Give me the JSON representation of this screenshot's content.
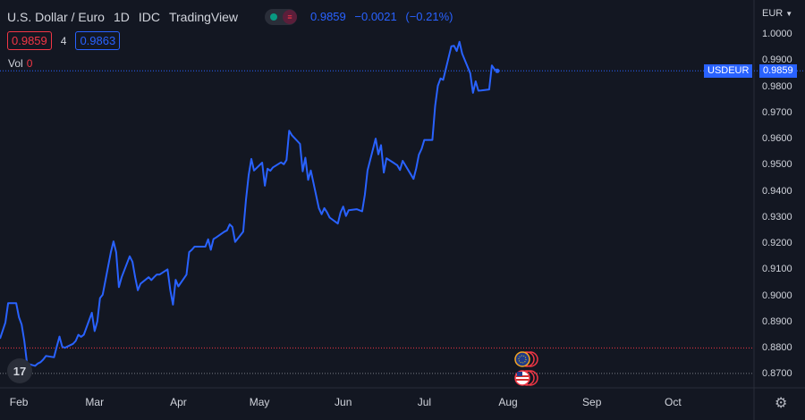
{
  "header": {
    "symbol": "U.S. Dollar / Euro",
    "interval": "1D",
    "exchange": "IDC",
    "provider": "TradingView"
  },
  "quote": {
    "last": "0.9859",
    "change": "−0.0021",
    "change_pct": "(−0.21%)"
  },
  "bid_ask": {
    "bid": "0.9859",
    "spread": "4",
    "ask": "0.9863"
  },
  "volume": {
    "label": "Vol",
    "value": "0"
  },
  "currency": {
    "label": "EUR",
    "icon": "chevron-down-icon"
  },
  "price_tag": {
    "name": "USDEUR",
    "value": "0.9859"
  },
  "icons": {
    "logo": "tradingview-logo",
    "settings": "gear-icon",
    "events": [
      "eu-flag-icon",
      "us-flag-icon"
    ]
  },
  "colors": {
    "line": "#2962ff",
    "background": "#131722",
    "bid": "#f23645",
    "ask": "#2962ff",
    "market_open": "#089981"
  },
  "chart_data": {
    "type": "line",
    "symbol": "USDEUR",
    "y_ticks": [
      "1.0000",
      "0.9900",
      "0.9800",
      "0.9700",
      "0.9600",
      "0.9500",
      "0.9400",
      "0.9300",
      "0.9200",
      "0.9100",
      "0.9000",
      "0.8900",
      "0.8800",
      "0.8700"
    ],
    "x_ticks": [
      "Feb",
      "Mar",
      "Apr",
      "May",
      "Jun",
      "Jul",
      "Aug",
      "Sep",
      "Oct"
    ],
    "ylim": [
      0.8647,
      1.013
    ],
    "xlim": [
      "2022-01-25",
      "2022-10-31"
    ],
    "grid": false,
    "reference_lines": [
      0.98591,
      0.87994,
      0.8702
    ],
    "series": [
      {
        "values": [
          [
            "2022-01-25",
            0.8835
          ],
          [
            "2022-01-27",
            0.8896
          ],
          [
            "2022-01-28",
            0.8971
          ],
          [
            "2022-01-31",
            0.8971
          ],
          [
            "2022-02-01",
            0.8917
          ],
          [
            "2022-02-02",
            0.8889
          ],
          [
            "2022-02-03",
            0.8826
          ],
          [
            "2022-02-04",
            0.874
          ],
          [
            "2022-02-07",
            0.8731
          ],
          [
            "2022-02-08",
            0.874
          ],
          [
            "2022-02-09",
            0.8745
          ],
          [
            "2022-02-10",
            0.8755
          ],
          [
            "2022-02-11",
            0.8769
          ],
          [
            "2022-02-14",
            0.8764
          ],
          [
            "2022-02-15",
            0.8805
          ],
          [
            "2022-02-16",
            0.8843
          ],
          [
            "2022-02-17",
            0.8805
          ],
          [
            "2022-02-18",
            0.88
          ],
          [
            "2022-02-21",
            0.8815
          ],
          [
            "2022-02-22",
            0.8826
          ],
          [
            "2022-02-23",
            0.885
          ],
          [
            "2022-02-24",
            0.8842
          ],
          [
            "2022-02-25",
            0.885
          ],
          [
            "2022-02-28",
            0.8934
          ],
          [
            "2022-03-01",
            0.8864
          ],
          [
            "2022-03-02",
            0.8901
          ],
          [
            "2022-03-03",
            0.899
          ],
          [
            "2022-03-04",
            0.9003
          ],
          [
            "2022-03-07",
            0.9165
          ],
          [
            "2022-03-08",
            0.9207
          ],
          [
            "2022-03-09",
            0.9165
          ],
          [
            "2022-03-10",
            0.9032
          ],
          [
            "2022-03-11",
            0.907
          ],
          [
            "2022-03-14",
            0.915
          ],
          [
            "2022-03-15",
            0.9129
          ],
          [
            "2022-03-16",
            0.907
          ],
          [
            "2022-03-17",
            0.902
          ],
          [
            "2022-03-18",
            0.9045
          ],
          [
            "2022-03-21",
            0.907
          ],
          [
            "2022-03-22",
            0.9059
          ],
          [
            "2022-03-23",
            0.907
          ],
          [
            "2022-03-24",
            0.908
          ],
          [
            "2022-03-25",
            0.908
          ],
          [
            "2022-03-28",
            0.91
          ],
          [
            "2022-03-29",
            0.902
          ],
          [
            "2022-03-30",
            0.8965
          ],
          [
            "2022-03-31",
            0.906
          ],
          [
            "2022-04-01",
            0.9035
          ],
          [
            "2022-04-04",
            0.908
          ],
          [
            "2022-04-05",
            0.9166
          ],
          [
            "2022-04-06",
            0.9175
          ],
          [
            "2022-04-07",
            0.9187
          ],
          [
            "2022-04-08",
            0.9187
          ],
          [
            "2022-04-11",
            0.9187
          ],
          [
            "2022-04-12",
            0.9215
          ],
          [
            "2022-04-13",
            0.9175
          ],
          [
            "2022-04-14",
            0.9216
          ],
          [
            "2022-04-15",
            0.9222
          ],
          [
            "2022-04-18",
            0.9244
          ],
          [
            "2022-04-19",
            0.9249
          ],
          [
            "2022-04-20",
            0.9272
          ],
          [
            "2022-04-21",
            0.9262
          ],
          [
            "2022-04-22",
            0.9205
          ],
          [
            "2022-04-25",
            0.9244
          ],
          [
            "2022-04-26",
            0.9366
          ],
          [
            "2022-04-27",
            0.946
          ],
          [
            "2022-04-28",
            0.9522
          ],
          [
            "2022-04-29",
            0.9478
          ],
          [
            "2022-05-02",
            0.9508
          ],
          [
            "2022-05-03",
            0.942
          ],
          [
            "2022-05-04",
            0.9485
          ],
          [
            "2022-05-05",
            0.9477
          ],
          [
            "2022-05-06",
            0.949
          ],
          [
            "2022-05-09",
            0.9509
          ],
          [
            "2022-05-10",
            0.9502
          ],
          [
            "2022-05-11",
            0.9518
          ],
          [
            "2022-05-12",
            0.963
          ],
          [
            "2022-05-13",
            0.9613
          ],
          [
            "2022-05-16",
            0.958
          ],
          [
            "2022-05-17",
            0.9475
          ],
          [
            "2022-05-18",
            0.9527
          ],
          [
            "2022-05-19",
            0.9442
          ],
          [
            "2022-05-20",
            0.9478
          ],
          [
            "2022-05-23",
            0.9334
          ],
          [
            "2022-05-24",
            0.9311
          ],
          [
            "2022-05-25",
            0.9334
          ],
          [
            "2022-05-26",
            0.9318
          ],
          [
            "2022-05-27",
            0.9298
          ],
          [
            "2022-05-30",
            0.9275
          ],
          [
            "2022-05-31",
            0.9317
          ],
          [
            "2022-06-01",
            0.934
          ],
          [
            "2022-06-02",
            0.9304
          ],
          [
            "2022-06-03",
            0.9326
          ],
          [
            "2022-06-06",
            0.933
          ],
          [
            "2022-06-07",
            0.9326
          ],
          [
            "2022-06-08",
            0.9322
          ],
          [
            "2022-06-09",
            0.9385
          ],
          [
            "2022-06-10",
            0.9478
          ],
          [
            "2022-06-13",
            0.96
          ],
          [
            "2022-06-14",
            0.954
          ],
          [
            "2022-06-15",
            0.9575
          ],
          [
            "2022-06-16",
            0.947
          ],
          [
            "2022-06-17",
            0.9525
          ],
          [
            "2022-06-20",
            0.9505
          ],
          [
            "2022-06-21",
            0.9498
          ],
          [
            "2022-06-22",
            0.948
          ],
          [
            "2022-06-23",
            0.9515
          ],
          [
            "2022-06-24",
            0.9498
          ],
          [
            "2022-06-27",
            0.9446
          ],
          [
            "2022-06-28",
            0.9486
          ],
          [
            "2022-06-29",
            0.9538
          ],
          [
            "2022-06-30",
            0.9561
          ],
          [
            "2022-07-01",
            0.9595
          ],
          [
            "2022-07-04",
            0.9595
          ],
          [
            "2022-07-05",
            0.9725
          ],
          [
            "2022-07-06",
            0.9802
          ],
          [
            "2022-07-07",
            0.983
          ],
          [
            "2022-07-08",
            0.9825
          ],
          [
            "2022-07-11",
            0.9953
          ],
          [
            "2022-07-12",
            0.9955
          ],
          [
            "2022-07-13",
            0.9935
          ],
          [
            "2022-07-14",
            0.997
          ],
          [
            "2022-07-15",
            0.9925
          ],
          [
            "2022-07-18",
            0.985
          ],
          [
            "2022-07-19",
            0.9775
          ],
          [
            "2022-07-20",
            0.9819
          ],
          [
            "2022-07-21",
            0.9783
          ],
          [
            "2022-07-22",
            0.9784
          ],
          [
            "2022-07-25",
            0.9788
          ],
          [
            "2022-07-26",
            0.988
          ],
          [
            "2022-07-27",
            0.9865
          ],
          [
            "2022-07-28",
            0.9859
          ]
        ]
      }
    ]
  }
}
